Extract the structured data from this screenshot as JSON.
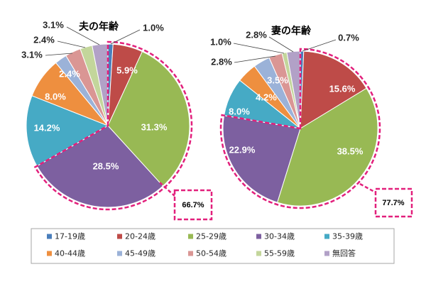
{
  "chart_data": {
    "type": "pie",
    "legend": "bottom",
    "categories": [
      "17-19歳",
      "20-24歳",
      "25-29歳",
      "30-34歳",
      "35-39歳",
      "40-44歳",
      "45-49歳",
      "50-54歳",
      "55-59歳",
      "無回答"
    ],
    "colors": [
      "#4A7EBB",
      "#BE4B48",
      "#98B954",
      "#7D60A0",
      "#46AAC5",
      "#EE8F3F",
      "#9BB2D8",
      "#DA9694",
      "#C3D69B",
      "#B2A1C7"
    ],
    "highlight_color": "#E2207C",
    "series": [
      {
        "name": "夫の年齢",
        "values": [
          1.0,
          5.9,
          31.3,
          28.5,
          14.2,
          8.0,
          2.4,
          3.1,
          2.4,
          3.1
        ],
        "value_labels": [
          "1.0%",
          "5.9%",
          "31.3%",
          "28.5%",
          "14.2%",
          "8.0%",
          "2.4%",
          "3.1%",
          "2.4%",
          "3.1%"
        ],
        "highlight": {
          "value": 66.7,
          "label": "66.7%"
        }
      },
      {
        "name": "妻の年齢",
        "values": [
          0.7,
          15.6,
          38.5,
          22.9,
          8.0,
          4.2,
          3.5,
          2.8,
          1.0,
          2.8
        ],
        "value_labels": [
          "0.7%",
          "15.6%",
          "38.5%",
          "22.9%",
          "8.0%",
          "4.2%",
          "3.5%",
          "2.8%",
          "1.0%",
          "2.8%"
        ],
        "highlight": {
          "value": 77.7,
          "label": "77.7%"
        }
      }
    ]
  }
}
